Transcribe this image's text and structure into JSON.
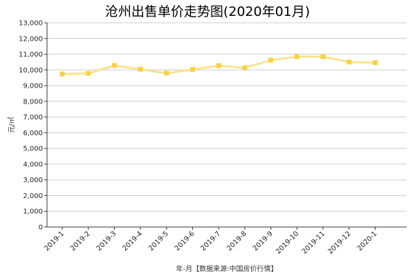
{
  "chart_data": {
    "type": "line",
    "title": "沧州出售单价走势图(2020年01月)",
    "xlabel": "年-月【数据来源:中国房价行情】",
    "ylabel": "元/㎡",
    "categories": [
      "2019-1",
      "2019-2",
      "2019-3",
      "2019-4",
      "2019-5",
      "2019-6",
      "2019-7",
      "2019-8",
      "2019-9",
      "2019-10",
      "2019-11",
      "2019-12",
      "2020-1"
    ],
    "series": [
      {
        "values": [
          9740,
          9780,
          10280,
          10040,
          9790,
          10030,
          10270,
          10130,
          10620,
          10840,
          10840,
          10500,
          10460
        ]
      }
    ],
    "ylim": [
      0,
      13000
    ],
    "yticks": [
      0,
      1000,
      2000,
      3000,
      4000,
      5000,
      6000,
      7000,
      8000,
      9000,
      10000,
      11000,
      12000,
      13000
    ],
    "ytick_labels": [
      "0",
      "1,000",
      "2,000",
      "3,000",
      "4,000",
      "5,000",
      "6,000",
      "7,000",
      "8,000",
      "9,000",
      "10,000",
      "11,000",
      "12,000",
      "13,000"
    ],
    "grid": true,
    "line_color": "#fae18c",
    "marker_color": "#f5d24b",
    "grid_color": "#cccccc"
  }
}
